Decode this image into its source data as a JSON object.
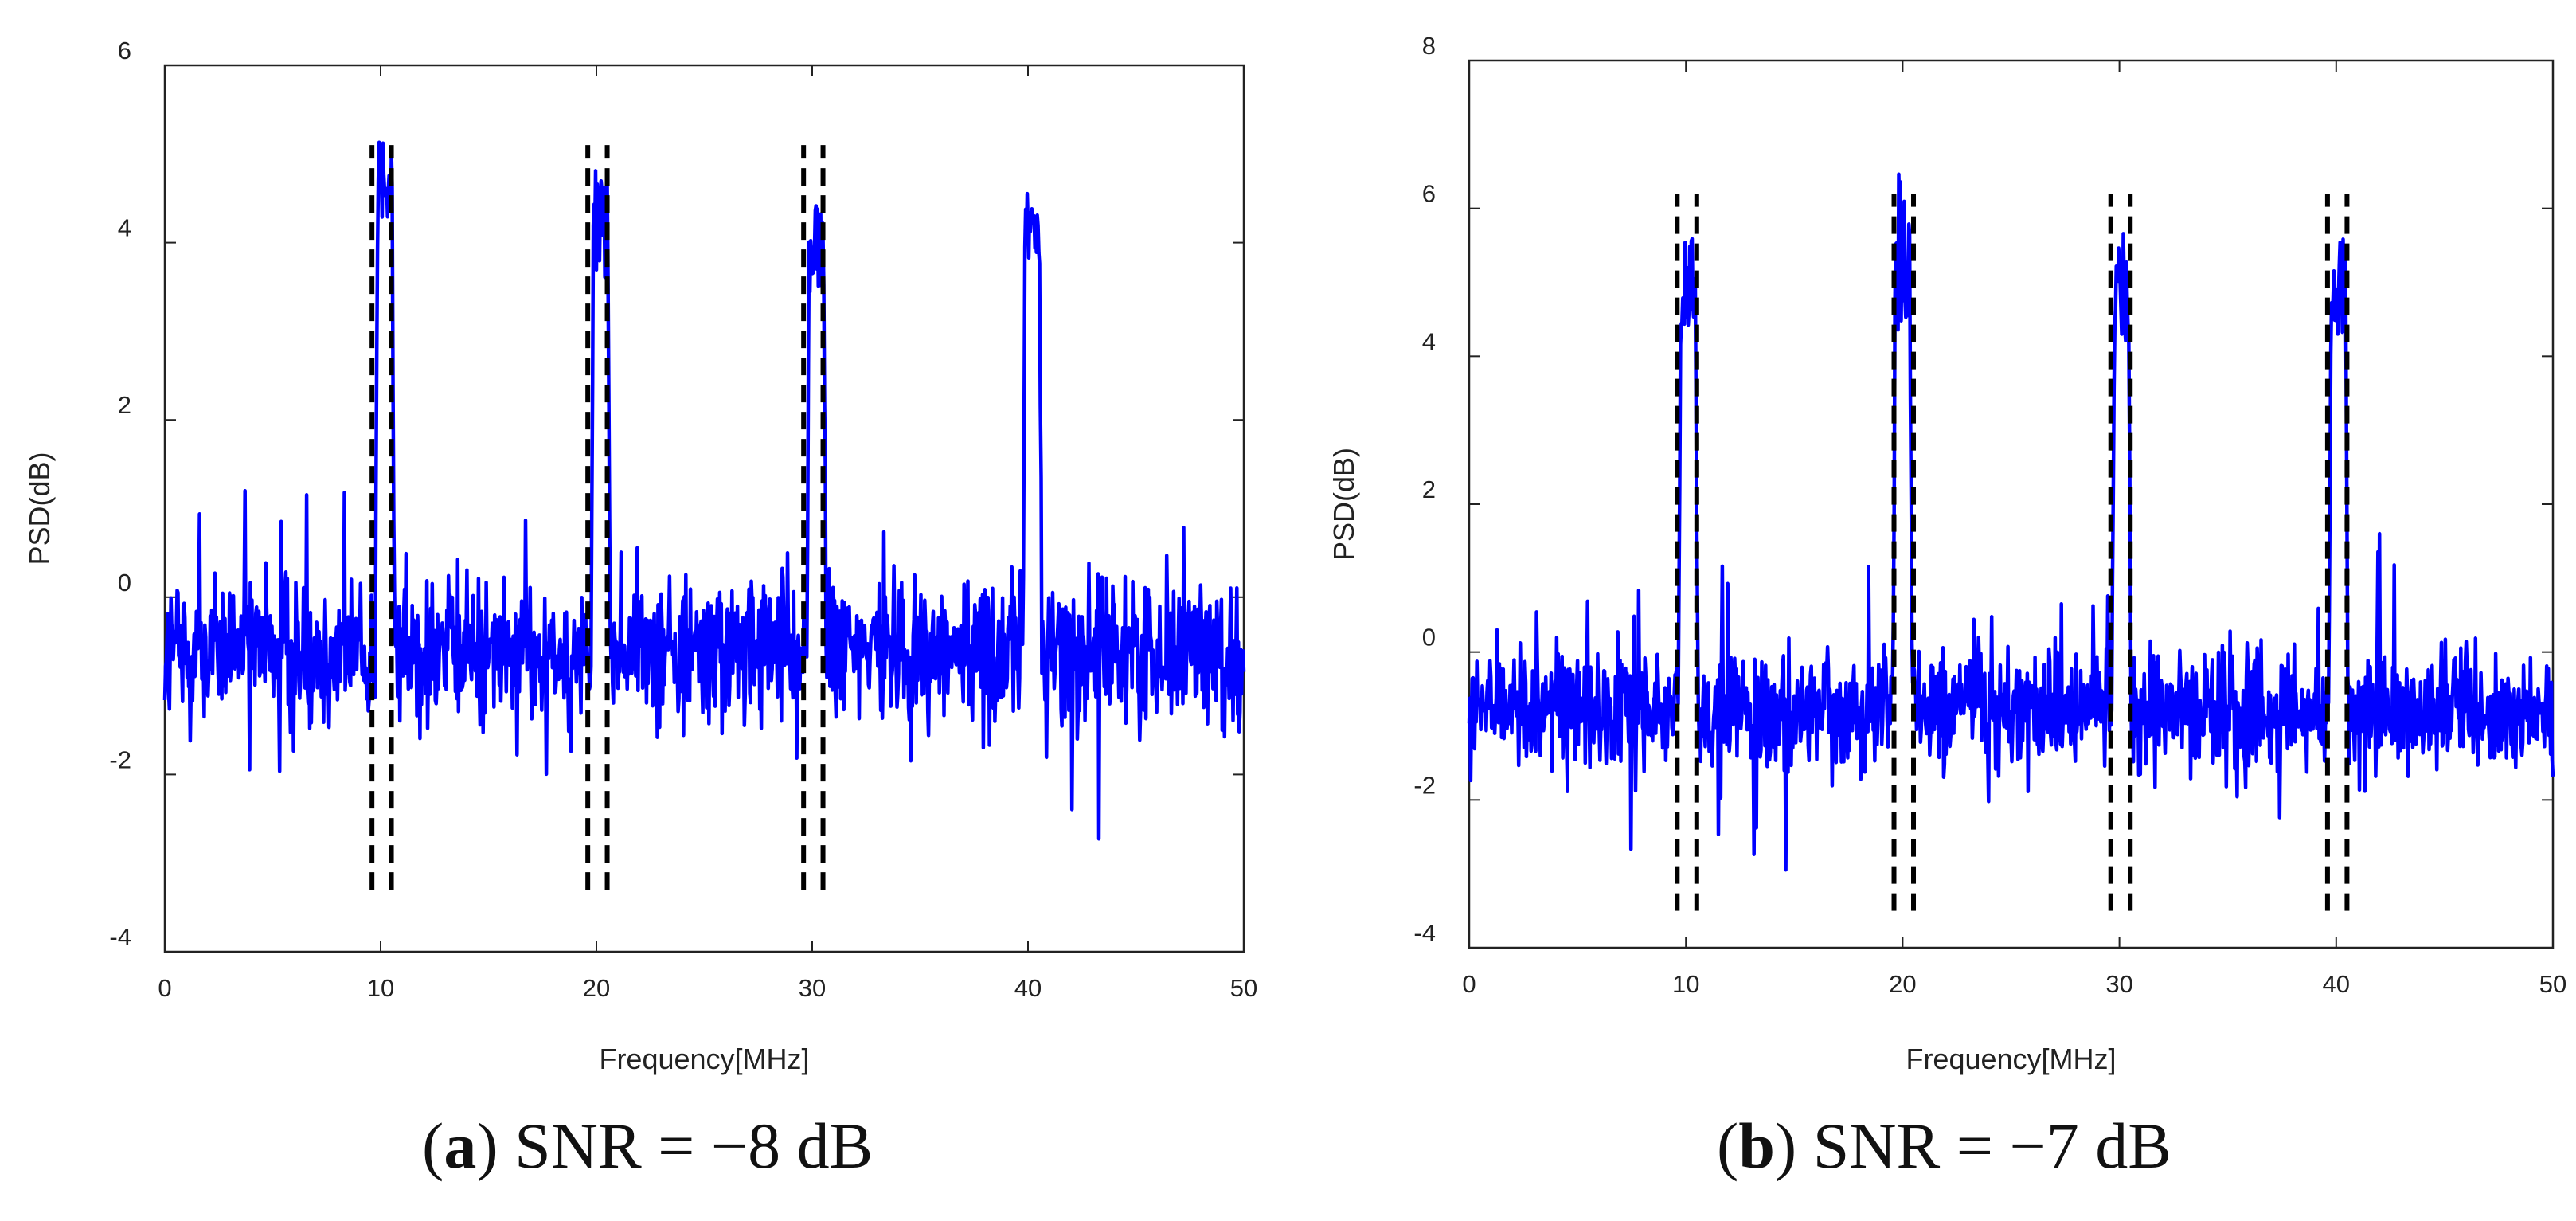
{
  "chart_data": [
    {
      "type": "line",
      "panel": "a",
      "caption_letter": "a",
      "caption_text": "SNR = −8 dB",
      "xlabel": "Frequency[MHz]",
      "ylabel": "PSD(dB)",
      "xlim": [
        0,
        50
      ],
      "ylim": [
        -4,
        6
      ],
      "xticks": [
        "0",
        "10",
        "20",
        "30",
        "40",
        "50"
      ],
      "yticks": [
        "-4",
        "-2",
        "0",
        "2",
        "4",
        "6"
      ],
      "noise_floor_db": -0.6,
      "noise_range_db": [
        -3.2,
        1.2
      ],
      "peaks": [
        {
          "center_mhz": 10.2,
          "peak_db": 5.2,
          "plateau_db": 4.2
        },
        {
          "center_mhz": 20.2,
          "peak_db": 4.9,
          "plateau_db": 3.6
        },
        {
          "center_mhz": 30.2,
          "peak_db": 4.7,
          "plateau_db": 3.4
        },
        {
          "center_mhz": 40.2,
          "peak_db": 4.6,
          "plateau_db": 3.8
        }
      ],
      "markers": [
        {
          "x": [
            9.6,
            10.5
          ],
          "y": [
            -3.3,
            5.1
          ]
        },
        {
          "x": [
            19.6,
            20.5
          ],
          "y": [
            -3.3,
            5.1
          ]
        },
        {
          "x": [
            29.6,
            30.5
          ],
          "y": [
            -3.3,
            5.1
          ]
        }
      ],
      "series_color": "#0000ff",
      "marker_color": "#000000",
      "grid": false
    },
    {
      "type": "line",
      "panel": "b",
      "caption_letter": "b",
      "caption_text": "SNR = −7 dB",
      "xlabel": "Frequency[MHz]",
      "ylabel": "PSD(dB)",
      "xlim": [
        0,
        50
      ],
      "ylim": [
        -4,
        8
      ],
      "xticks": [
        "0",
        "10",
        "20",
        "30",
        "40",
        "50"
      ],
      "yticks": [
        "-4",
        "-2",
        "0",
        "2",
        "4",
        "6",
        "8"
      ],
      "noise_floor_db": -0.8,
      "noise_range_db": [
        -3.4,
        1.6
      ],
      "peaks": [
        {
          "center_mhz": 10.1,
          "peak_db": 5.6,
          "plateau_db": 4.4
        },
        {
          "center_mhz": 20.0,
          "peak_db": 6.5,
          "plateau_db": 4.3
        },
        {
          "center_mhz": 30.1,
          "peak_db": 5.7,
          "plateau_db": 4.2
        },
        {
          "center_mhz": 40.1,
          "peak_db": 5.6,
          "plateau_db": 4.3
        }
      ],
      "markers": [
        {
          "x": [
            9.6,
            10.5
          ],
          "y": [
            -3.5,
            6.2
          ]
        },
        {
          "x": [
            19.6,
            20.5
          ],
          "y": [
            -3.5,
            6.2
          ]
        },
        {
          "x": [
            29.6,
            30.5
          ],
          "y": [
            -3.5,
            6.2
          ]
        },
        {
          "x": [
            39.6,
            40.5
          ],
          "y": [
            -3.5,
            6.2
          ]
        }
      ],
      "series_color": "#0000ff",
      "marker_color": "#000000",
      "grid": false
    }
  ]
}
